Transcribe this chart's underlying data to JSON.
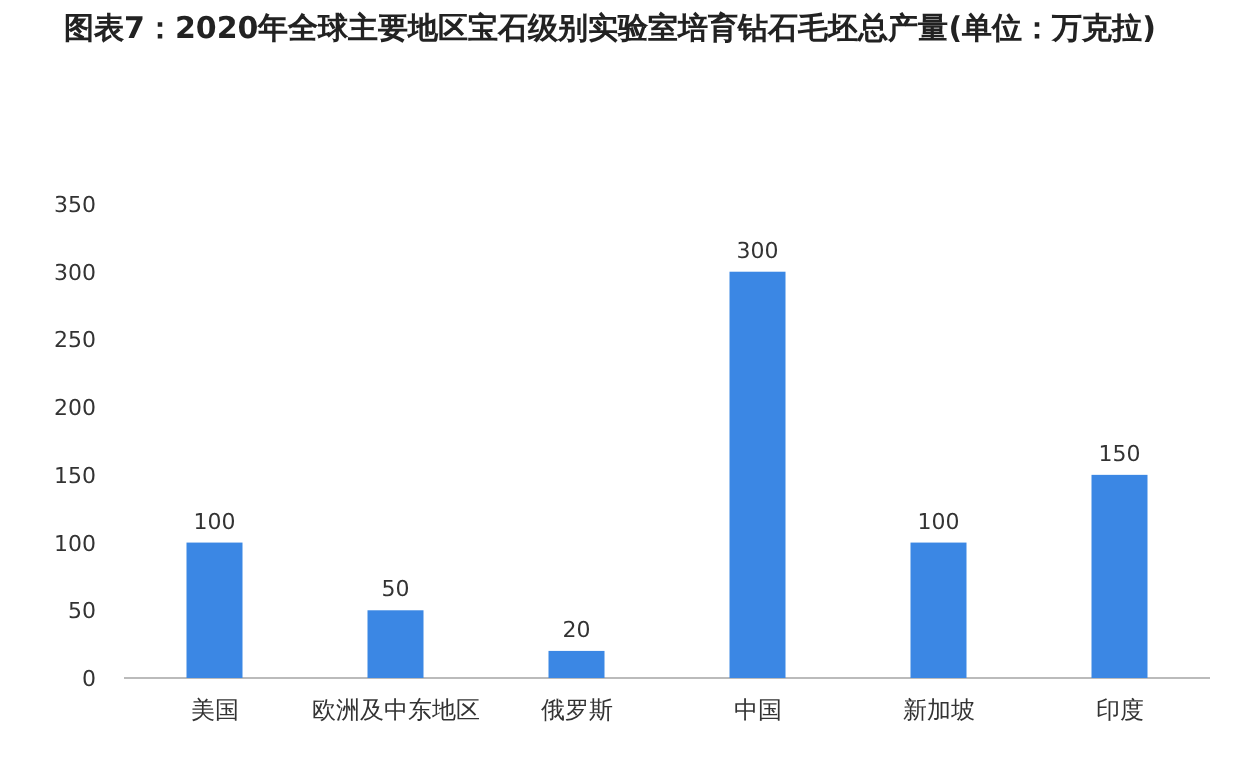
{
  "chart_data": {
    "type": "bar",
    "title": "图表7：2020年全球主要地区宝石级别实验室培育钻石毛坯总产量(单位：万克拉)",
    "categories": [
      "美国",
      "欧洲及中东地区",
      "俄罗斯",
      "中国",
      "新加坡",
      "印度"
    ],
    "values": [
      100,
      50,
      20,
      300,
      100,
      150
    ],
    "color": "#3b87e4",
    "ylim": [
      0,
      350
    ],
    "yticks": [
      0,
      50,
      100,
      150,
      200,
      250,
      300,
      350
    ],
    "grid": false,
    "data_labels": true
  }
}
